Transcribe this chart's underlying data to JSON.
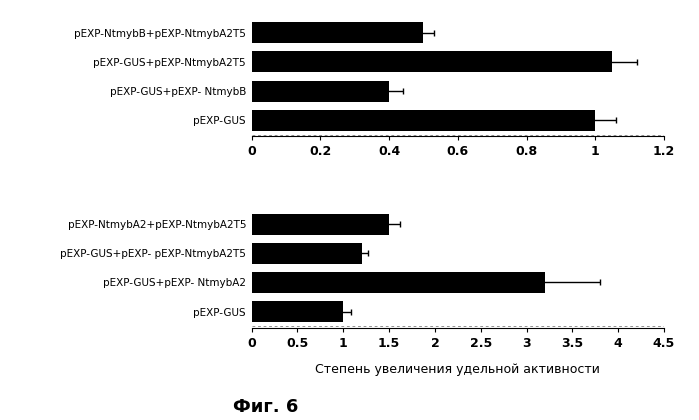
{
  "top_chart": {
    "labels": [
      "pEXP-NtmybB+pEXP-NtmybA2T5",
      "pEXP-GUS+pEXP-NtmybA2T5",
      "pEXP-GUS+pEXP- NtmybB",
      "pEXP-GUS"
    ],
    "values": [
      0.5,
      1.05,
      0.4,
      1.0
    ],
    "errors": [
      0.03,
      0.07,
      0.04,
      0.06
    ],
    "xlim": [
      0,
      1.2
    ],
    "xticks": [
      0,
      0.2,
      0.4,
      0.6,
      0.8,
      1.0,
      1.2
    ],
    "xtick_labels": [
      "0",
      "0.2",
      "0.4",
      "0.6",
      "0.8",
      "1",
      "1.2"
    ]
  },
  "bottom_chart": {
    "labels": [
      "pEXP-NtmybA2+pEXP-NtmybA2T5",
      "pEXP-GUS+pEXP- pEXP-NtmybA2T5",
      "pEXP-GUS+pEXP- NtmybA2",
      "pEXP-GUS"
    ],
    "values": [
      1.5,
      1.2,
      3.2,
      1.0
    ],
    "errors": [
      0.12,
      0.07,
      0.6,
      0.08
    ],
    "xlim": [
      0,
      4.5
    ],
    "xticks": [
      0,
      0.5,
      1.0,
      1.5,
      2.0,
      2.5,
      3.0,
      3.5,
      4.0,
      4.5
    ],
    "xtick_labels": [
      "0",
      "0.5",
      "1",
      "1.5",
      "2",
      "2.5",
      "3",
      "3.5",
      "4",
      "4.5"
    ]
  },
  "bar_color": "#000000",
  "bar_height": 0.72,
  "xlabel": "Степень увеличения удельной активности",
  "figure_label": "Фиг. 6",
  "bg_color": "#ffffff",
  "label_fontsize": 7.5,
  "tick_fontsize": 9,
  "xlabel_fontsize": 9,
  "figlabel_fontsize": 13
}
